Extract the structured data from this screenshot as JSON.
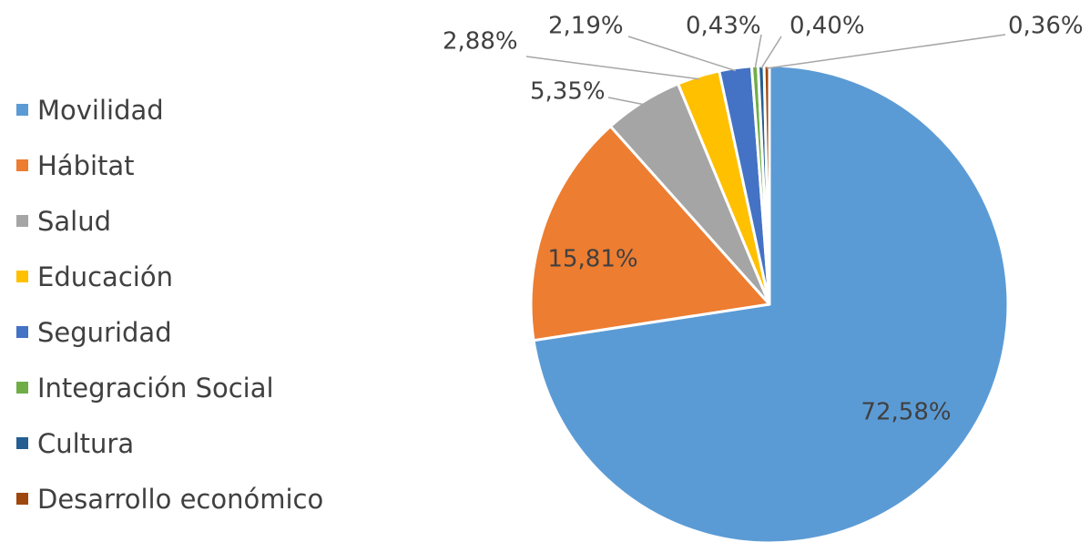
{
  "chart_data": {
    "type": "pie",
    "title": "",
    "legend_position": "left",
    "start_angle_deg": 0,
    "direction": "clockwise",
    "slices": [
      {
        "name": "Movilidad",
        "value": 72.58,
        "label": "72,58%",
        "color": "#5B9BD5"
      },
      {
        "name": "Hábitat",
        "value": 15.81,
        "label": "15,81%",
        "color": "#ED7D31"
      },
      {
        "name": "Salud",
        "value": 5.35,
        "label": "5,35%",
        "color": "#A5A5A5"
      },
      {
        "name": "Educación",
        "value": 2.88,
        "label": "2,88%",
        "color": "#FFC000"
      },
      {
        "name": "Seguridad",
        "value": 2.19,
        "label": "2,19%",
        "color": "#4472C4"
      },
      {
        "name": "Integración Social",
        "value": 0.43,
        "label": "0,43%",
        "color": "#70AD47"
      },
      {
        "name": "Cultura",
        "value": 0.4,
        "label": "0,40%",
        "color": "#255E91"
      },
      {
        "name": "Desarrollo económico",
        "value": 0.36,
        "label": "0,36%",
        "color": "#9E480E"
      }
    ]
  }
}
